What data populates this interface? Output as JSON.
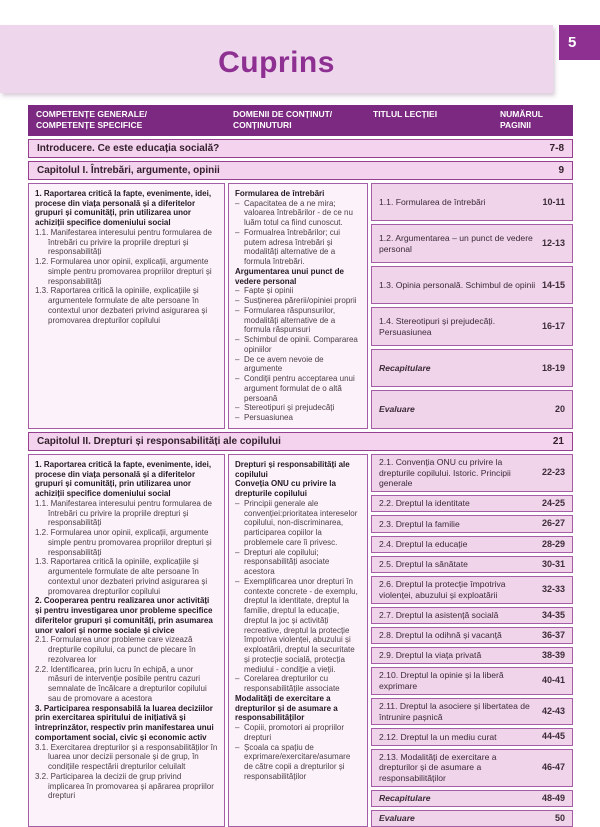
{
  "page": {
    "number": "5",
    "title": "Cuprins"
  },
  "table": {
    "headers": {
      "col1": "COMPETENȚE GENERALE/\nCOMPETENȚE SPECIFICE",
      "col2": "DOMENII DE CONȚINUT/\nCONȚINUTURI",
      "col3": "TITLUL LECȚIEI",
      "col4": "NUMĂRUL\nPAGINII"
    },
    "intro": {
      "label": "Introducere. Ce este educația socială?",
      "pages": "7-8"
    },
    "chapter1": {
      "label": "Capitolul I. Întrebări, argumente, opinii",
      "pages": "9",
      "competences": [
        "1. Raportarea critică la fapte, evenimente, idei, procese din viața personală și a diferitelor grupuri și comunități, prin utilizarea unor achiziții specifice domeniului social",
        "1.1. Manifestarea interesului pentru formularea de întrebări cu privire la propriile drepturi și responsabilități",
        "1.2. Formularea unor opinii, explicații, argumente simple pentru promovarea propriilor drepturi și responsabilități",
        "1.3. Raportarea critică la opiniile, explicațiile și argumentele formulate de alte persoane în contextul unor dezbateri privind asigurarea și promovarea drepturilor copilului"
      ],
      "domains": {
        "head1": "Formularea de întrebări",
        "bullets1": [
          "Capacitatea de a ne mira; valoarea întrebărilor - de ce nu luăm totul ca fiind cunoscut.",
          "Formualrea întrebărilor; cui putem adresa întrebări și modalități alternative de a formula întrebări."
        ],
        "head2": "Argumentarea unui punct de vedere personal",
        "bullets2": [
          "Fapte și opinii",
          "Susținerea părerii/opiniei proprii",
          "Formularea răspunsurilor, modalități alternative de a formula răspunsuri",
          "Schimbul de opinii. Compararea opiniilor",
          "De ce avem nevoie de argumente",
          "Condiții pentru acceptarea unui argument formulat de o altă persoană",
          "Stereotipuri și prejudecăți",
          "Persuasiunea"
        ]
      },
      "lessons": [
        {
          "title": "1.1. Formularea de întrebări",
          "pages": "10-11"
        },
        {
          "title": "1.2. Argumentarea – un punct de vedere personal",
          "pages": "12-13"
        },
        {
          "title": "1.3. Opinia personală. Schimbul de opinii",
          "pages": "14-15"
        },
        {
          "title": "1.4. Stereotipuri și prejudecăți. Persuasiunea",
          "pages": "16-17"
        },
        {
          "title": "Recapitulare",
          "pages": "18-19"
        },
        {
          "title": "Evaluare",
          "pages": "20"
        }
      ]
    },
    "chapter2": {
      "label": "Capitolul II. Drepturi și responsabilități ale copilului",
      "pages": "21",
      "competences": [
        "1. Raportarea critică la fapte, evenimente, idei, procese din viața personală și a diferitelor grupuri și comunități, prin utilizarea unor achiziții specifice domeniului social",
        "1.1. Manifestarea interesului pentru formularea de întrebări cu privire la propriile drepturi și responsabilități",
        "1.2. Formularea unor opinii, explicații, argumente simple pentru promovarea propriilor drepturi și responsabilități",
        "1.3. Raportarea critică la opiniile, explicațiile și argumentele formulate de alte persoane în contextul unor dezbateri privind asigurarea și promovarea drepturilor copilului",
        "2. Cooperarea pentru realizarea unor activități și pentru investigarea unor probleme specifice diferitelor grupuri și comunități, prin asumarea unor valori și norme sociale și civice",
        "2.1. Formularea unor probleme care vizează drepturile copilului, ca punct de plecare în rezolvarea lor",
        "2.2. Identificarea, prin lucru în echipă, a unor măsuri de intervenție posibile pentru cazuri semnalate de încălcare a drepturilor copilului sau de promovare a acestora",
        "3. Participarea responsabilă la luarea deciziilor prin exercitarea spiritului de inițiativă și întreprinzător, respectiv prin manifestarea unui comportament social, civic și economic activ",
        "3.1. Exercitarea drepturilor și a responsabilităților în luarea unor decizii personale și de grup, în condițiile respectării drepturilor celuilalt",
        "3.2. Participarea la decizii de grup privind implicarea în promovarea și apărarea propriilor drepturi"
      ],
      "domains": {
        "head1": "Drepturi și responsabilități ale copilului",
        "head2": "Conveția ONU cu privire la drepturile copilului",
        "bullets1": [
          "Principii generale ale convenției:prioritatea intereselor copilului, non-discriminarea, participarea copiilor la problemele care îi privesc.",
          "Drepturi ale copilului; responsabilități asociate acestora",
          "Exemplificarea unor drepturi în contexte concrete - de exemplu, dreptul la identitate, dreptul la familie, dreptul la educație, dreptul la joc și activități recreative, dreptul la protecție împotriva violenței, abuzului și exploatării, dreptul la securitate și protecție socială, protecția mediului - condiție a vieții.",
          "Corelarea drepturilor cu responsabilitățile associate"
        ],
        "head3": "Modalități de exercitare a drepturilor și de asumare a responsabilităților",
        "bullets2": [
          "Copiii, promotori ai propriilor drepturi",
          "Școala ca spațiu de exprimare/exercitare/asumare de către copii a drepturilor și responsabilităților"
        ]
      },
      "lessons": [
        {
          "title": "2.1. Convenția ONU cu privire la drepturile copilului. Istoric. Principii generale",
          "pages": "22-23"
        },
        {
          "title": "2.2. Dreptul la identitate",
          "pages": "24-25"
        },
        {
          "title": "2.3. Dreptul la familie",
          "pages": "26-27"
        },
        {
          "title": "2.4. Dreptul la educație",
          "pages": "28-29"
        },
        {
          "title": "2.5. Dreptul la sănătate",
          "pages": "30-31"
        },
        {
          "title": "2.6. Dreptul la protecție împotriva violenței, abuzului și exploatării",
          "pages": "32-33"
        },
        {
          "title": "2.7. Dreptul la asistență socială",
          "pages": "34-35"
        },
        {
          "title": "2.8. Dreptul la odihnă și vacanță",
          "pages": "36-37"
        },
        {
          "title": "2.9. Dreptul la viața privată",
          "pages": "38-39"
        },
        {
          "title": "2.10. Dreptul la opinie și la liberă exprimare",
          "pages": "40-41"
        },
        {
          "title": "2.11. Dreptul la asociere și libertatea de întrunire pașnică",
          "pages": "42-43"
        },
        {
          "title": "2.12. Dreptul la un mediu curat",
          "pages": "44-45"
        },
        {
          "title": "2.13. Modalități de exercitare a drepturilor și de asumare a responsabilităților",
          "pages": "46-47"
        },
        {
          "title": "Recapitulare",
          "pages": "48-49"
        },
        {
          "title": "Evaluare",
          "pages": "50"
        }
      ]
    }
  }
}
